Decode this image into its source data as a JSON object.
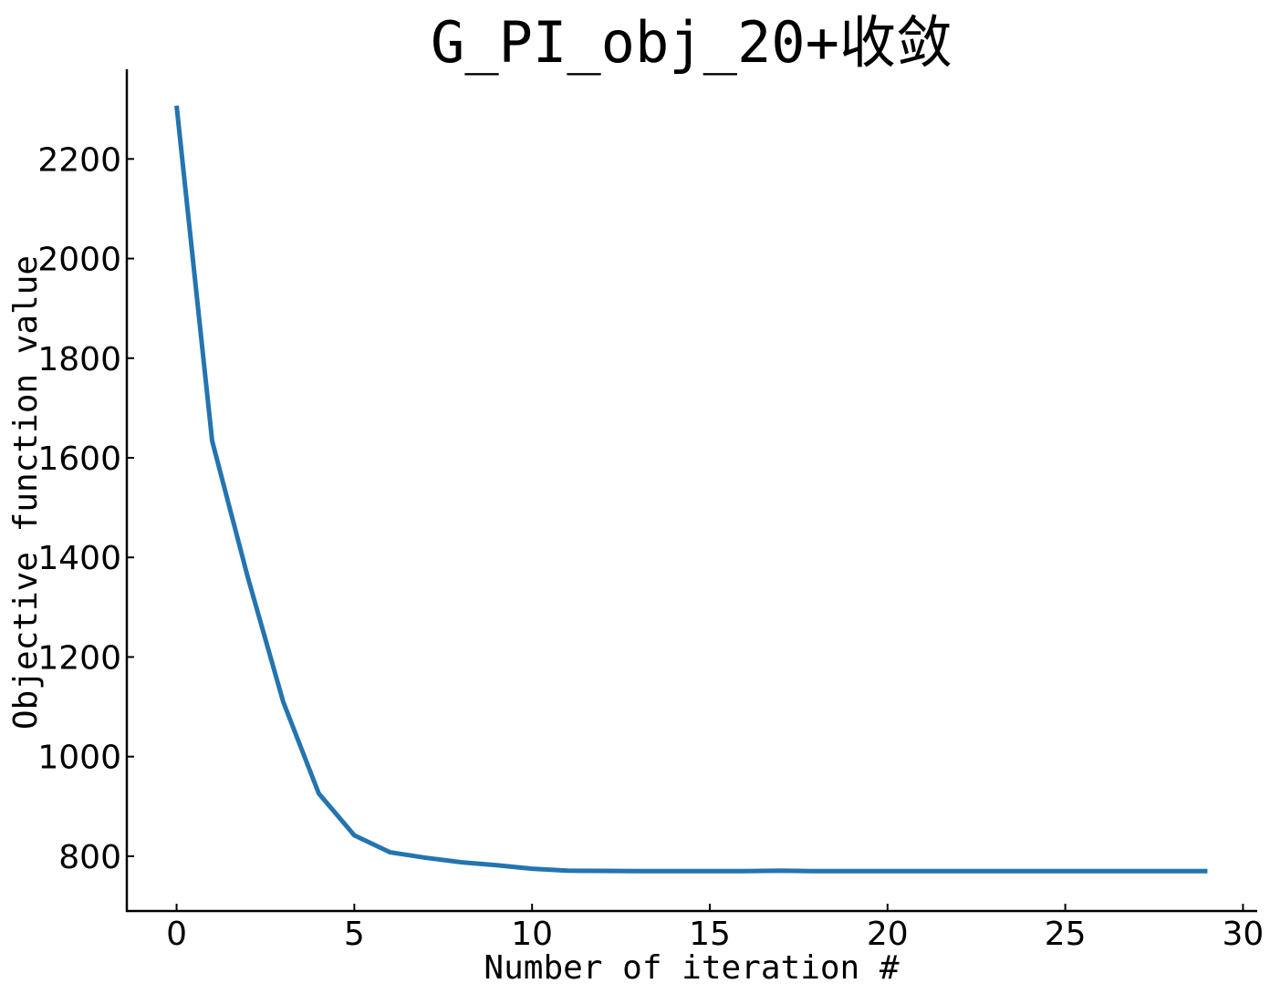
{
  "chart_data": {
    "type": "line",
    "title": "G_PI_obj_20+收敛",
    "xlabel": "Number of iteration #",
    "ylabel": "Objective function value",
    "xlim": [
      -1.4,
      30.4
    ],
    "ylim": [
      690,
      2380
    ],
    "xticks": [
      0,
      5,
      10,
      15,
      20,
      25,
      30
    ],
    "yticks": [
      800,
      1000,
      1200,
      1400,
      1600,
      1800,
      2000,
      2200
    ],
    "grid": false,
    "legend": "none",
    "spines": [
      "left",
      "bottom"
    ],
    "series": [
      {
        "color": "#2474b0",
        "x": [
          0,
          1,
          2,
          3,
          4,
          5,
          6,
          7,
          8,
          9,
          10,
          11,
          12,
          13,
          14,
          15,
          16,
          17,
          18,
          19,
          20,
          21,
          22,
          23,
          24,
          25,
          26,
          27,
          28,
          29
        ],
        "values": [
          2307,
          1634,
          1361,
          1110,
          926,
          842,
          808,
          797,
          788,
          782,
          775,
          771,
          770.5,
          770,
          770,
          770,
          770,
          771,
          770,
          770,
          770,
          770,
          770,
          770,
          770,
          770,
          770,
          770,
          770,
          770
        ]
      }
    ]
  }
}
